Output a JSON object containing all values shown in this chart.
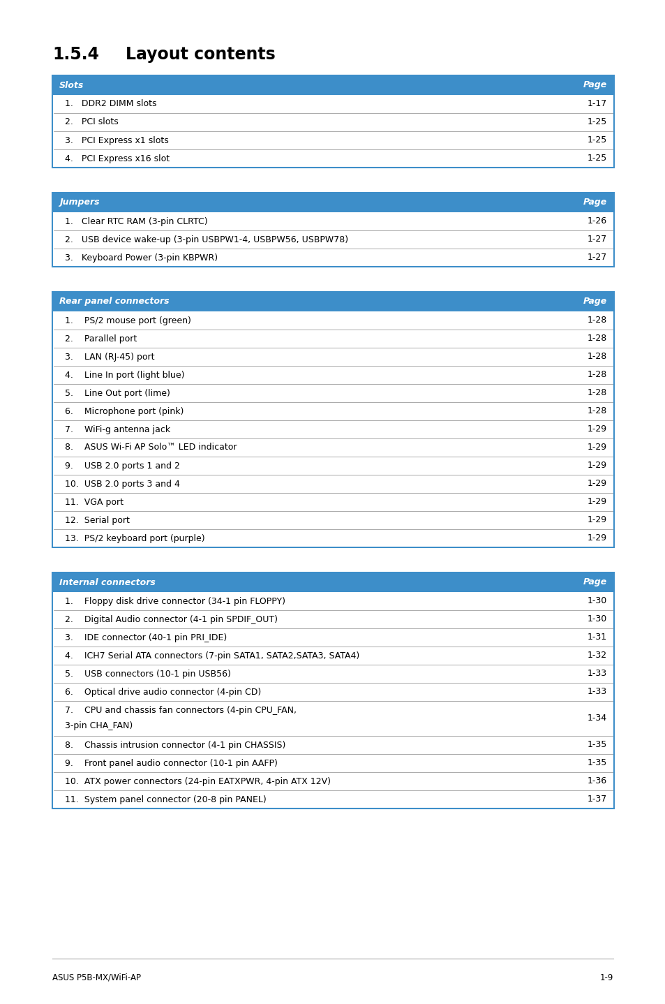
{
  "title_num": "1.5.4",
  "title_text": "Layout contents",
  "header_color": "#3d8ec9",
  "header_text_color": "#ffffff",
  "border_color": "#3d8ec9",
  "divider_color": "#888888",
  "body_text_color": "#000000",
  "footer_left": "ASUS P5B-MX/WiFi-AP",
  "footer_right": "1-9",
  "tables": [
    {
      "header_left": "Slots",
      "header_right": "Page",
      "rows": [
        [
          "1.   DDR2 DIMM slots",
          "1-17"
        ],
        [
          "2.   PCI slots",
          "1-25"
        ],
        [
          "3.   PCI Express x1 slots",
          "1-25"
        ],
        [
          "4.   PCI Express x16 slot",
          "1-25"
        ]
      ]
    },
    {
      "header_left": "Jumpers",
      "header_right": "Page",
      "rows": [
        [
          "1.   Clear RTC RAM (3-pin CLRTC)",
          "1-26"
        ],
        [
          "2.   USB device wake-up (3-pin USBPW1-4, USBPW56, USBPW78)",
          "1-27"
        ],
        [
          "3.   Keyboard Power (3-pin KBPWR)",
          "1-27"
        ]
      ]
    },
    {
      "header_left": "Rear panel connectors",
      "header_right": "Page",
      "rows": [
        [
          "1.    PS/2 mouse port (green)",
          "1-28"
        ],
        [
          "2.    Parallel port",
          "1-28"
        ],
        [
          "3.    LAN (RJ-45) port",
          "1-28"
        ],
        [
          "4.    Line In port (light blue)",
          "1-28"
        ],
        [
          "5.    Line Out port (lime)",
          "1-28"
        ],
        [
          "6.    Microphone port (pink)",
          "1-28"
        ],
        [
          "7.    WiFi-g antenna jack",
          "1-29"
        ],
        [
          "8.    ASUS Wi-Fi AP Solo™ LED indicator",
          "1-29"
        ],
        [
          "9.    USB 2.0 ports 1 and 2",
          "1-29"
        ],
        [
          "10.  USB 2.0 ports 3 and 4",
          "1-29"
        ],
        [
          "11.  VGA port",
          "1-29"
        ],
        [
          "12.  Serial port",
          "1-29"
        ],
        [
          "13.  PS/2 keyboard port (purple)",
          "1-29"
        ]
      ]
    },
    {
      "header_left": "Internal connectors",
      "header_right": "Page",
      "rows": [
        [
          "1.    Floppy disk drive connector (34-1 pin FLOPPY)",
          "1-30"
        ],
        [
          "2.    Digital Audio connector (4-1 pin SPDIF_OUT)",
          "1-30"
        ],
        [
          "3.    IDE connector (40-1 pin PRI_IDE)",
          "1-31"
        ],
        [
          "4.    ICH7 Serial ATA connectors (7-pin SATA1, SATA2,SATA3, SATA4)",
          "1-32"
        ],
        [
          "5.    USB connectors (10-1 pin USB56)",
          "1-33"
        ],
        [
          "6.    Optical drive audio connector (4-pin CD)",
          "1-33"
        ],
        [
          "7.    CPU and chassis fan connectors (4-pin CPU_FAN,\n        3-pin CHA_FAN)",
          "1-34"
        ],
        [
          "8.    Chassis intrusion connector (4-1 pin CHASSIS)",
          "1-35"
        ],
        [
          "9.    Front panel audio connector (10-1 pin AAFP)",
          "1-35"
        ],
        [
          "10.  ATX power connectors (24-pin EATXPWR, 4-pin ATX 12V)",
          "1-36"
        ],
        [
          "11.  System panel connector (20-8 pin PANEL)",
          "1-37"
        ]
      ]
    }
  ]
}
